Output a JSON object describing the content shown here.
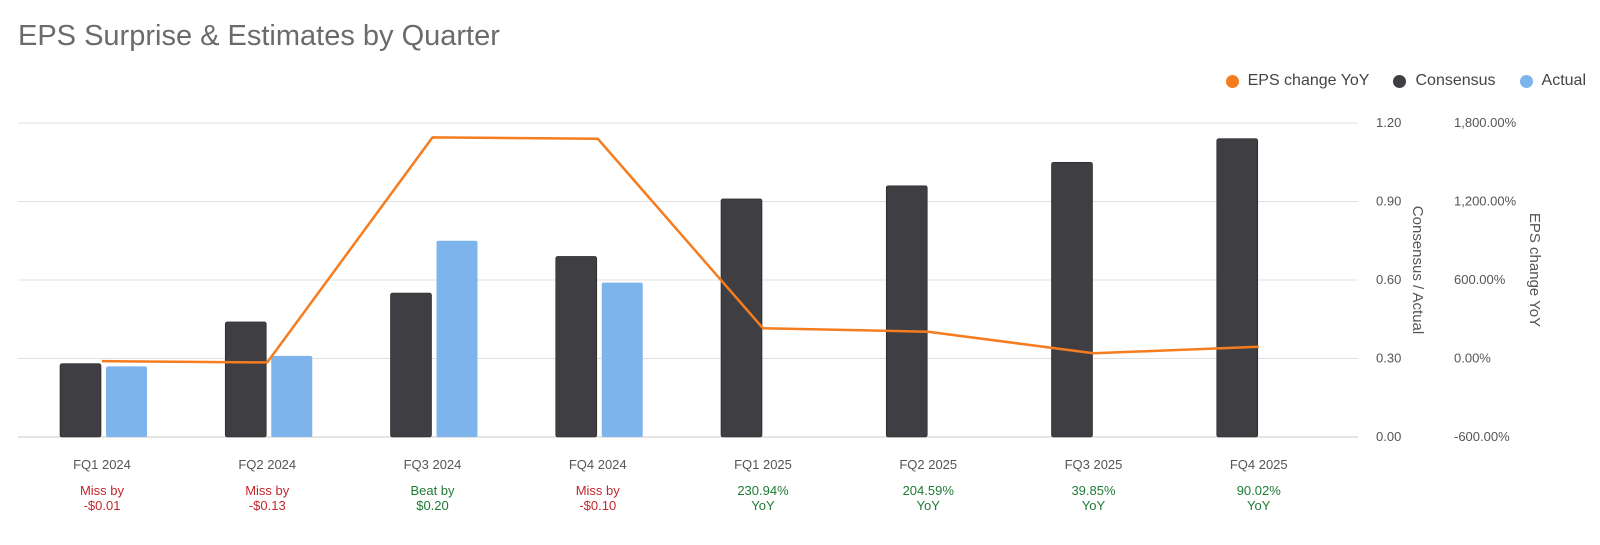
{
  "title": "EPS Surprise & Estimates by Quarter",
  "legend": [
    {
      "label": "EPS change YoY",
      "color": "#f57c1f"
    },
    {
      "label": "Consensus",
      "color": "#3f3f43"
    },
    {
      "label": "Actual",
      "color": "#7eb4ec"
    }
  ],
  "chart_data": {
    "type": "bar",
    "categories": [
      "FQ1 2024",
      "FQ2 2024",
      "FQ3 2024",
      "FQ4 2024",
      "FQ1 2025",
      "FQ2 2025",
      "FQ3 2025",
      "FQ4 2025"
    ],
    "series": [
      {
        "name": "Consensus",
        "axis": "left",
        "type": "bar",
        "color": "#3f3f43",
        "values": [
          0.28,
          0.44,
          0.55,
          0.69,
          0.91,
          0.96,
          1.05,
          1.14
        ]
      },
      {
        "name": "Actual",
        "axis": "left",
        "type": "bar",
        "color": "#7eb4ec",
        "values": [
          0.27,
          0.31,
          0.75,
          0.59,
          null,
          null,
          null,
          null
        ]
      },
      {
        "name": "EPS change YoY",
        "axis": "right",
        "type": "line",
        "color": "#f57c1f",
        "values": [
          -20,
          -30,
          1690,
          1680,
          230.94,
          204.59,
          39.85,
          90.02
        ]
      }
    ],
    "annotations": [
      {
        "line1": "Miss by",
        "line2": "-$0.01",
        "status": "miss"
      },
      {
        "line1": "Miss by",
        "line2": "-$0.13",
        "status": "miss"
      },
      {
        "line1": "Beat by",
        "line2": "$0.20",
        "status": "beat"
      },
      {
        "line1": "Miss by",
        "line2": "-$0.10",
        "status": "miss"
      },
      {
        "line1": "230.94%",
        "line2": "YoY",
        "status": "beat"
      },
      {
        "line1": "204.59%",
        "line2": "YoY",
        "status": "beat"
      },
      {
        "line1": "39.85%",
        "line2": "YoY",
        "status": "beat"
      },
      {
        "line1": "90.02%",
        "line2": "YoY",
        "status": "beat"
      }
    ],
    "status_colors": {
      "miss": "#c0282d",
      "beat": "#1e7b34"
    },
    "ylabel_left": "Consensus / Actual",
    "ylabel_right": "EPS change YoY",
    "ylim_left": [
      0,
      1.2
    ],
    "ylim_right": [
      -600,
      1800
    ],
    "yticks_left": [
      "0.00",
      "0.30",
      "0.60",
      "0.90",
      "1.20"
    ],
    "yticks_left_values": [
      0,
      0.3,
      0.6,
      0.9,
      1.2
    ],
    "yticks_right": [
      "-600.00%",
      "0.00%",
      "600.00%",
      "1,200.00%",
      "1,800.00%"
    ],
    "yticks_right_values": [
      -600,
      0,
      600,
      1200,
      1800
    ],
    "grid": true,
    "legend_position": "top-right"
  }
}
